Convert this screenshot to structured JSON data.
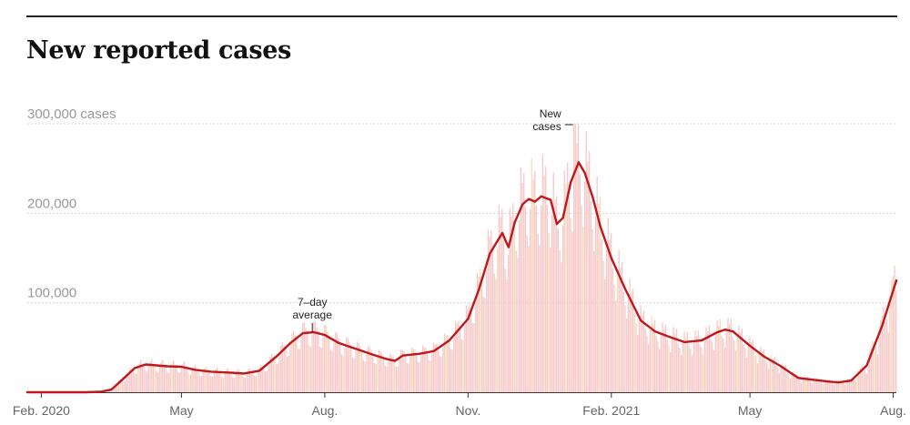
{
  "chart_data": {
    "type": "bar",
    "title": "New reported cases",
    "ylabel": "cases",
    "ylim": [
      0,
      300000
    ],
    "yticks": [
      {
        "value": 300000,
        "label": "300,000 cases"
      },
      {
        "value": 200000,
        "label": "200,000"
      },
      {
        "value": 100000,
        "label": "100,000"
      }
    ],
    "xticks": [
      {
        "date": "2020-02-01",
        "label": "Feb. 2020"
      },
      {
        "date": "2020-05-01",
        "label": "May"
      },
      {
        "date": "2020-08-01",
        "label": "Aug."
      },
      {
        "date": "2020-11-01",
        "label": "Nov."
      },
      {
        "date": "2021-02-01",
        "label": "Feb. 2021"
      },
      {
        "date": "2021-05-01",
        "label": "May"
      },
      {
        "date": "2021-08-01",
        "label": "Aug."
      }
    ],
    "xrange": [
      "2020-01-23",
      "2021-08-03"
    ],
    "series": [
      {
        "name": "7-day average",
        "color": "#c0171b",
        "points": [
          [
            "2020-01-23",
            0
          ],
          [
            "2020-03-01",
            0
          ],
          [
            "2020-03-10",
            500
          ],
          [
            "2020-03-17",
            3000
          ],
          [
            "2020-03-24",
            14000
          ],
          [
            "2020-04-01",
            27000
          ],
          [
            "2020-04-08",
            31000
          ],
          [
            "2020-04-15",
            30000
          ],
          [
            "2020-04-22",
            29000
          ],
          [
            "2020-05-01",
            28500
          ],
          [
            "2020-05-10",
            25000
          ],
          [
            "2020-05-20",
            23000
          ],
          [
            "2020-06-01",
            22000
          ],
          [
            "2020-06-10",
            21000
          ],
          [
            "2020-06-20",
            24000
          ],
          [
            "2020-07-01",
            40000
          ],
          [
            "2020-07-10",
            55000
          ],
          [
            "2020-07-18",
            66000
          ],
          [
            "2020-07-25",
            67000
          ],
          [
            "2020-08-01",
            64000
          ],
          [
            "2020-08-10",
            55000
          ],
          [
            "2020-08-20",
            49000
          ],
          [
            "2020-09-01",
            42000
          ],
          [
            "2020-09-10",
            37000
          ],
          [
            "2020-09-15",
            35000
          ],
          [
            "2020-09-20",
            41000
          ],
          [
            "2020-10-01",
            43000
          ],
          [
            "2020-10-10",
            46000
          ],
          [
            "2020-10-20",
            58000
          ],
          [
            "2020-11-01",
            82000
          ],
          [
            "2020-11-08",
            115000
          ],
          [
            "2020-11-15",
            155000
          ],
          [
            "2020-11-23",
            178000
          ],
          [
            "2020-11-27",
            162000
          ],
          [
            "2020-12-01",
            190000
          ],
          [
            "2020-12-06",
            210000
          ],
          [
            "2020-12-10",
            216000
          ],
          [
            "2020-12-14",
            213000
          ],
          [
            "2020-12-18",
            219000
          ],
          [
            "2020-12-24",
            215000
          ],
          [
            "2020-12-28",
            188000
          ],
          [
            "2021-01-01",
            195000
          ],
          [
            "2021-01-06",
            235000
          ],
          [
            "2021-01-11",
            257000
          ],
          [
            "2021-01-15",
            245000
          ],
          [
            "2021-01-20",
            218000
          ],
          [
            "2021-01-25",
            185000
          ],
          [
            "2021-02-01",
            150000
          ],
          [
            "2021-02-10",
            115000
          ],
          [
            "2021-02-20",
            80000
          ],
          [
            "2021-03-01",
            68000
          ],
          [
            "2021-03-10",
            62000
          ],
          [
            "2021-03-20",
            56000
          ],
          [
            "2021-03-31",
            58000
          ],
          [
            "2021-04-10",
            67000
          ],
          [
            "2021-04-15",
            70000
          ],
          [
            "2021-04-20",
            68000
          ],
          [
            "2021-05-01",
            52000
          ],
          [
            "2021-05-10",
            40000
          ],
          [
            "2021-05-20",
            30000
          ],
          [
            "2021-06-01",
            16000
          ],
          [
            "2021-06-10",
            14000
          ],
          [
            "2021-06-20",
            12000
          ],
          [
            "2021-06-27",
            11000
          ],
          [
            "2021-07-05",
            13000
          ],
          [
            "2021-07-15",
            30000
          ],
          [
            "2021-07-25",
            75000
          ],
          [
            "2021-08-03",
            125000
          ]
        ]
      },
      {
        "name": "New cases",
        "color": "#f6c9c9",
        "note": "daily bars fluctuate around the 7-day average with weekly reporting cycles; peak daily near 300,000 in early January 2021"
      }
    ],
    "annotations": [
      {
        "lines": [
          "7–day",
          "average"
        ],
        "date": "2020-07-24",
        "value": 67000
      },
      {
        "lines": [
          "New",
          "cases"
        ],
        "date": "2021-01-08",
        "value": 300000
      }
    ]
  }
}
